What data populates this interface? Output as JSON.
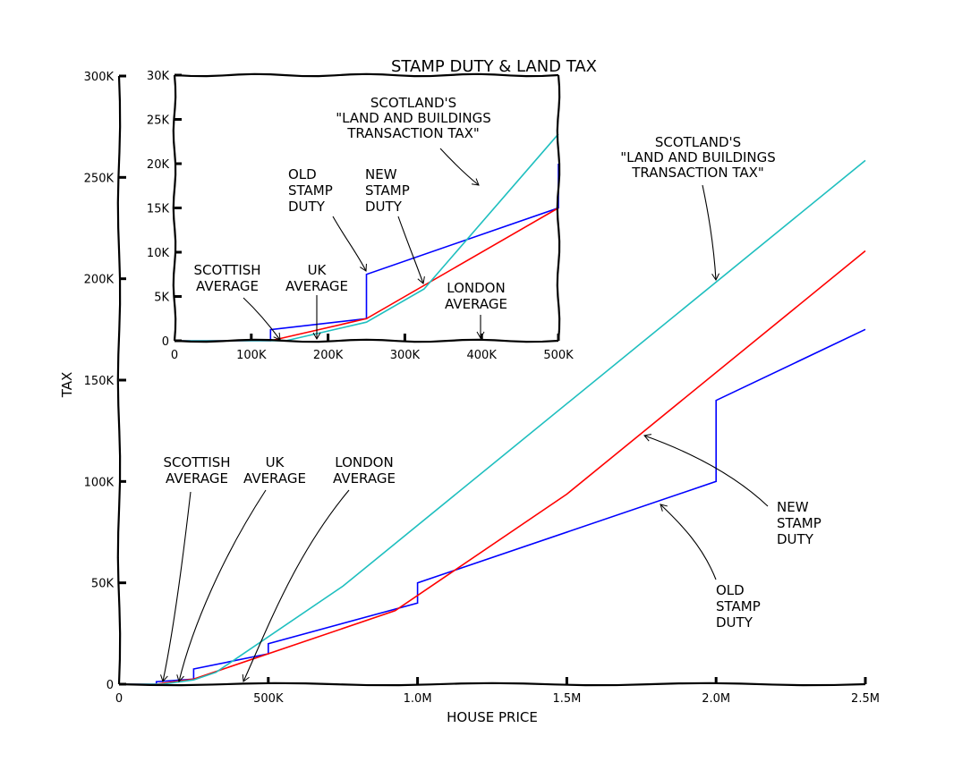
{
  "chart_data": {
    "type": "line",
    "title": "STAMP DUTY & LAND TAX",
    "xlabel": "HOUSE PRICE",
    "ylabel": "TAX",
    "xlim": [
      0,
      2500000
    ],
    "ylim": [
      0,
      300000
    ],
    "x_ticks": [
      "0",
      "500K",
      "1.0M",
      "1.5M",
      "2.0M",
      "2.5M"
    ],
    "x_tick_values": [
      0,
      500000,
      1000000,
      1500000,
      2000000,
      2500000
    ],
    "y_ticks": [
      "0",
      "50K",
      "100K",
      "150K",
      "200K",
      "250K",
      "300K"
    ],
    "y_tick_values": [
      0,
      50000,
      100000,
      150000,
      200000,
      250000,
      300000
    ],
    "grid": false,
    "colors": {
      "old": "#0000ff",
      "new": "#ff0000",
      "lbtt": "#1fbfbf"
    },
    "series": [
      {
        "key": "old",
        "color": "#0000ff",
        "points": [
          [
            0,
            0
          ],
          [
            125000,
            0
          ],
          [
            125000,
            1250
          ],
          [
            250000,
            2500
          ],
          [
            250000,
            7500
          ],
          [
            500000,
            15000
          ],
          [
            500000,
            20000
          ],
          [
            1000000,
            40000
          ],
          [
            1000000,
            50000
          ],
          [
            2000000,
            100000
          ],
          [
            2000000,
            140000
          ],
          [
            2500000,
            175000
          ]
        ]
      },
      {
        "key": "new",
        "color": "#ff0000",
        "points": [
          [
            0,
            0
          ],
          [
            125000,
            0
          ],
          [
            250000,
            2500
          ],
          [
            925000,
            36250
          ],
          [
            1500000,
            93750
          ],
          [
            2500000,
            213750
          ]
        ]
      },
      {
        "key": "lbtt",
        "color": "#1fbfbf",
        "points": [
          [
            0,
            0
          ],
          [
            145000,
            0
          ],
          [
            250000,
            2100
          ],
          [
            325000,
            5850
          ],
          [
            750000,
            48350
          ],
          [
            2500000,
            258350
          ]
        ]
      }
    ],
    "annotations": [
      {
        "lines": [
          "SCOTTISH",
          "AVERAGE"
        ],
        "x": 140000
      },
      {
        "lines": [
          "UK",
          "AVERAGE"
        ],
        "x": 190000
      },
      {
        "lines": [
          "LONDON",
          "AVERAGE"
        ],
        "x": 410000
      },
      {
        "lines": [
          "OLD",
          "STAMP",
          "DUTY"
        ]
      },
      {
        "lines": [
          "NEW",
          "STAMP",
          "DUTY"
        ]
      },
      {
        "lines": [
          "SCOTLAND'S",
          "\"LAND AND BUILDINGS",
          "TRANSACTION TAX\""
        ]
      }
    ],
    "inset": {
      "xlim": [
        0,
        500000
      ],
      "ylim": [
        0,
        30000
      ],
      "x_ticks": [
        "0",
        "100K",
        "200K",
        "300K",
        "400K",
        "500K"
      ],
      "x_tick_values": [
        0,
        100000,
        200000,
        300000,
        400000,
        500000
      ],
      "y_ticks": [
        "0",
        "5K",
        "10K",
        "15K",
        "20K",
        "25K",
        "30K"
      ],
      "y_tick_values": [
        0,
        5000,
        10000,
        15000,
        20000,
        25000,
        30000
      ]
    }
  }
}
